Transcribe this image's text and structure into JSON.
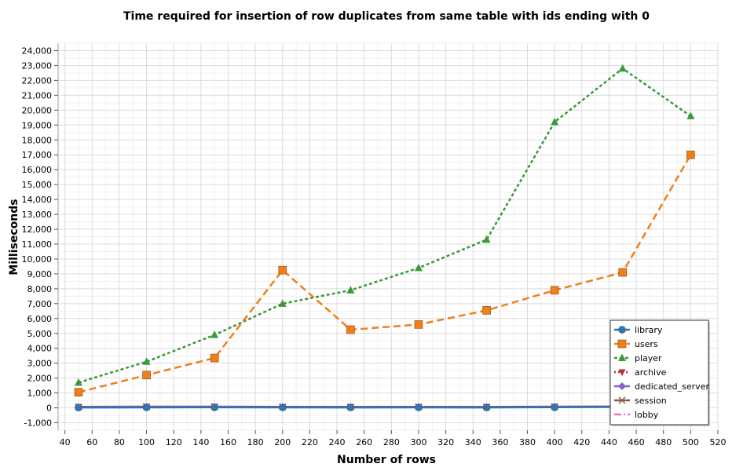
{
  "chart_data": {
    "type": "line",
    "title": "Time required for insertion of row duplicates from same table with ids ending with 0",
    "xlabel": "Number of rows",
    "ylabel": "Milliseconds",
    "xlim": [
      35,
      520
    ],
    "ylim": [
      -1500,
      24500
    ],
    "x_ticks": [
      40,
      60,
      80,
      100,
      120,
      140,
      160,
      180,
      200,
      220,
      240,
      260,
      280,
      300,
      320,
      340,
      360,
      380,
      400,
      420,
      440,
      460,
      480,
      500,
      520
    ],
    "y_ticks": [
      -1000,
      0,
      1000,
      2000,
      3000,
      4000,
      5000,
      6000,
      7000,
      8000,
      9000,
      10000,
      11000,
      12000,
      13000,
      14000,
      15000,
      16000,
      17000,
      18000,
      19000,
      20000,
      21000,
      22000,
      23000,
      24000
    ],
    "x_tick_labels": [
      "40",
      "60",
      "80",
      "100",
      "120",
      "140",
      "160",
      "180",
      "200",
      "220",
      "240",
      "260",
      "280",
      "300",
      "320",
      "340",
      "360",
      "380",
      "400",
      "420",
      "440",
      "460",
      "480",
      "500",
      "520"
    ],
    "y_tick_labels": [
      "-1,000",
      "0",
      "1,000",
      "2,000",
      "3,000",
      "4,000",
      "5,000",
      "6,000",
      "7,000",
      "8,000",
      "9,000",
      "10,000",
      "11,000",
      "12,000",
      "13,000",
      "14,000",
      "15,000",
      "16,000",
      "17,000",
      "18,000",
      "19,000",
      "20,000",
      "21,000",
      "22,000",
      "23,000",
      "24,000"
    ],
    "grid": true,
    "legend_position": "bottom-right",
    "x": [
      50,
      100,
      150,
      200,
      250,
      300,
      350,
      400,
      450,
      500
    ],
    "series": [
      {
        "name": "library",
        "color": "#2e75b6",
        "marker": "circle",
        "dash": "solid",
        "values": [
          20,
          30,
          35,
          30,
          25,
          30,
          25,
          40,
          60,
          80
        ]
      },
      {
        "name": "users",
        "color": "#ef7f1a",
        "marker": "square",
        "dash": "dashed",
        "values": [
          1050,
          2200,
          3350,
          9250,
          5250,
          5600,
          6550,
          7900,
          9100,
          17000
        ]
      },
      {
        "name": "player",
        "color": "#3a9a3a",
        "marker": "triangle",
        "dash": "dotted",
        "values": [
          1700,
          3100,
          4900,
          7000,
          7900,
          9400,
          11300,
          19200,
          22800,
          19600
        ]
      },
      {
        "name": "archive",
        "color": "#b03030",
        "marker": "triangle-down",
        "dash": "dotted-fine",
        "values": [
          40,
          50,
          60,
          50,
          45,
          50,
          45,
          60,
          70,
          90
        ]
      },
      {
        "name": "dedicated_server",
        "color": "#8064c8",
        "marker": "diamond",
        "dash": "solid",
        "values": [
          60,
          70,
          70,
          60,
          60,
          60,
          55,
          70,
          80,
          100
        ]
      },
      {
        "name": "session",
        "color": "#8b5a4a",
        "marker": "cross",
        "dash": "solid",
        "values": [
          70,
          80,
          80,
          70,
          70,
          70,
          65,
          80,
          90,
          110
        ]
      },
      {
        "name": "lobby",
        "color": "#e377c2",
        "marker": "none",
        "dash": "dashdot",
        "values": [
          50,
          60,
          60,
          55,
          55,
          55,
          50,
          65,
          75,
          95
        ]
      }
    ]
  }
}
